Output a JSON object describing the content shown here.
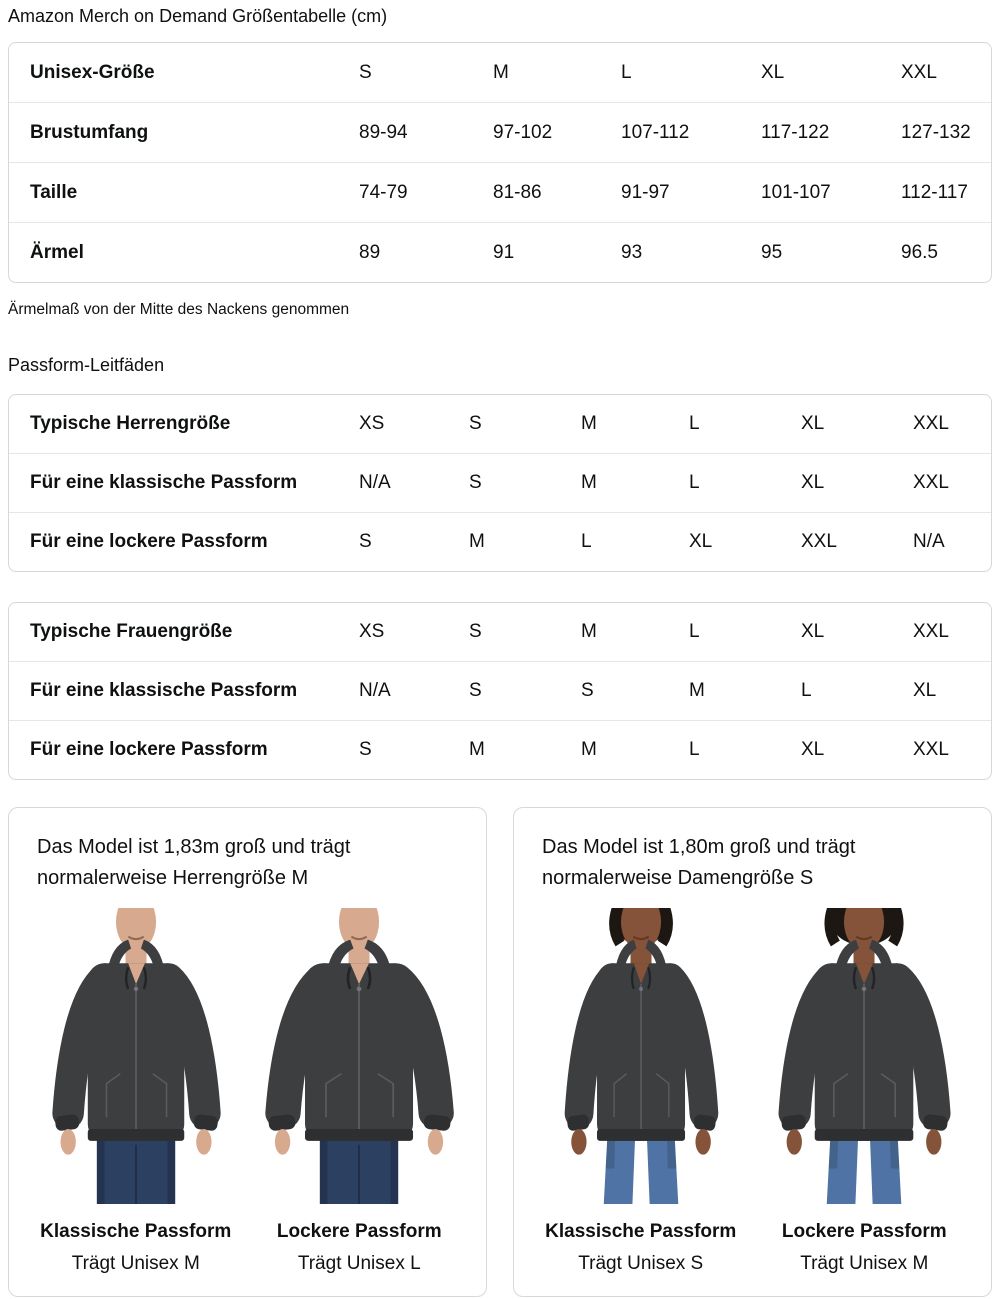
{
  "page": {
    "title": "Amazon Merch on Demand Größentabelle (cm)"
  },
  "colors": {
    "panel_border": "#d5d9d9",
    "row_divider": "#e7e7e7",
    "text": "#0f1111",
    "hoodie": "#3d3e40",
    "hoodie_dark": "#2e2f31",
    "mens_denim": "#2c4062",
    "womens_denim": "#4f73a4"
  },
  "size_table": {
    "header": {
      "label": "Unisex-Größe",
      "cols": [
        "S",
        "M",
        "L",
        "XL",
        "XXL"
      ]
    },
    "rows": [
      {
        "label": "Brustumfang",
        "values": [
          "89-94",
          "97-102",
          "107-112",
          "117-122",
          "127-132"
        ]
      },
      {
        "label": "Taille",
        "values": [
          "74-79",
          "81-86",
          "91-97",
          "101-107",
          "112-117"
        ]
      },
      {
        "label": "Ärmel",
        "values": [
          "89",
          "91",
          "93",
          "95",
          "96.5"
        ]
      }
    ],
    "footnote": "Ärmelmaß von der Mitte des Nackens genommen"
  },
  "fit_section": {
    "heading": "Passform-Leitfäden",
    "mens_table": {
      "rows": [
        {
          "label": "Typische Herrengröße",
          "values": [
            "XS",
            "S",
            "M",
            "L",
            "XL",
            "XXL"
          ]
        },
        {
          "label": "Für eine klassische Passform",
          "values": [
            "N/A",
            "S",
            "M",
            "L",
            "XL",
            "XXL"
          ]
        },
        {
          "label": "Für eine lockere Passform",
          "values": [
            "S",
            "M",
            "L",
            "XL",
            "XXL",
            "N/A"
          ]
        }
      ]
    },
    "womens_table": {
      "rows": [
        {
          "label": "Typische Frauengröße",
          "values": [
            "XS",
            "S",
            "M",
            "L",
            "XL",
            "XXL"
          ]
        },
        {
          "label": "Für eine klassische Passform",
          "values": [
            "N/A",
            "S",
            "S",
            "M",
            "L",
            "XL"
          ]
        },
        {
          "label": "Für eine lockere Passform",
          "values": [
            "S",
            "M",
            "M",
            "L",
            "XL",
            "XXL"
          ]
        }
      ]
    }
  },
  "model_cards": [
    {
      "description": "Das Model ist 1,83m groß und trägt normalerweise Herrengröße M",
      "photos": [
        {
          "fit_label": "Klassische Passform",
          "size_label": "Trägt Unisex M",
          "figure": {
            "gender": "m",
            "fit": "classic",
            "skin": "#d7a98f",
            "hair": "",
            "hair_rx": 0,
            "hoodie": "#3d3e40",
            "hoodie_dark": "#2e2f31",
            "stitch": "#5a5b60",
            "denim": "#2c4062"
          }
        },
        {
          "fit_label": "Lockere Passform",
          "size_label": "Trägt Unisex L",
          "figure": {
            "gender": "m",
            "fit": "loose",
            "skin": "#d7a98f",
            "hair": "",
            "hair_rx": 0,
            "hoodie": "#3d3e40",
            "hoodie_dark": "#2e2f31",
            "stitch": "#5a5b60",
            "denim": "#2c4062"
          }
        }
      ]
    },
    {
      "description": "Das Model ist 1,80m groß und trägt normalerweise Damengröße S",
      "photos": [
        {
          "fit_label": "Klassische Passform",
          "size_label": "Trägt Unisex S",
          "figure": {
            "gender": "f",
            "fit": "classic",
            "skin": "#855339",
            "hair": "#1d1713",
            "hair_rx": 29,
            "hoodie": "#3d3e40",
            "hoodie_dark": "#2e2f31",
            "stitch": "#5a5b60",
            "denim": "#4f73a4"
          }
        },
        {
          "fit_label": "Lockere Passform",
          "size_label": "Trägt Unisex M",
          "figure": {
            "gender": "f",
            "fit": "loose",
            "skin": "#855339",
            "hair": "#1d1713",
            "hair_rx": 37,
            "hoodie": "#3d3e40",
            "hoodie_dark": "#2e2f31",
            "stitch": "#5a5b60",
            "denim": "#4f73a4"
          }
        }
      ]
    }
  ]
}
